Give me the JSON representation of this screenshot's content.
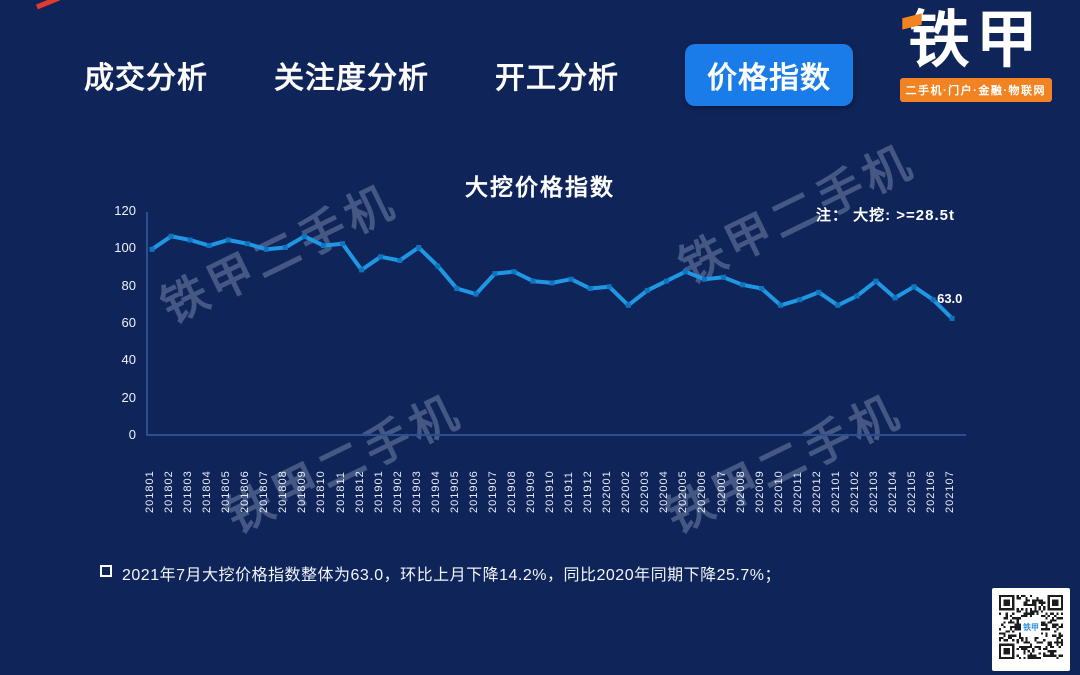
{
  "header": {
    "tabs": [
      {
        "label": "成交分析",
        "active": false
      },
      {
        "label": "关注度分析",
        "active": false
      },
      {
        "label": "开工分析",
        "active": false
      },
      {
        "label": "价格指数",
        "active": true
      }
    ],
    "logo": {
      "name": "铁甲",
      "tagline": "二手机·门户·金融·物联网"
    }
  },
  "chart_data": {
    "type": "line",
    "title": "大挖价格指数",
    "note": "注： 大挖: >=28.5t",
    "categories": [
      "201801",
      "201802",
      "201803",
      "201804",
      "201805",
      "201806",
      "201807",
      "201808",
      "201809",
      "201810",
      "201811",
      "201812",
      "201901",
      "201902",
      "201903",
      "201904",
      "201905",
      "201906",
      "201907",
      "201908",
      "201909",
      "201910",
      "201911",
      "201912",
      "202001",
      "202002",
      "202003",
      "202004",
      "202005",
      "202006",
      "202007",
      "202008",
      "202009",
      "202010",
      "202011",
      "202012",
      "202101",
      "202102",
      "202103",
      "202104",
      "202105",
      "202106",
      "202107"
    ],
    "values": [
      100,
      107,
      105,
      102,
      105,
      103,
      100,
      101,
      107,
      102,
      103,
      89,
      96,
      94,
      101,
      91,
      79,
      76,
      87,
      88,
      83,
      82,
      84,
      79,
      80,
      70,
      78,
      83,
      88,
      84,
      85,
      81,
      79,
      70,
      73,
      77,
      70,
      75,
      83,
      74,
      80,
      73,
      63
    ],
    "ylim": [
      0,
      120
    ],
    "yticks": [
      0,
      20,
      40,
      60,
      80,
      100,
      120
    ],
    "end_label": "63.0",
    "legend": [],
    "grid": false,
    "line_color": "#1f97e3",
    "marker_color": "#0f74c0",
    "axis_color": "#2a4f93"
  },
  "summary": {
    "text": "2021年7月大挖价格指数整体为63.0，环比上月下降14.2%，同比2020年同期下降25.7%；"
  },
  "watermark": {
    "text": "铁甲二手机"
  },
  "qr": {
    "center_label": "铁甲"
  },
  "colors": {
    "background": "#0f2459",
    "accent_blue": "#1a7ce8",
    "line_blue": "#1f97e3",
    "orange": "#f28322",
    "red_dash": "#e23a2e"
  }
}
